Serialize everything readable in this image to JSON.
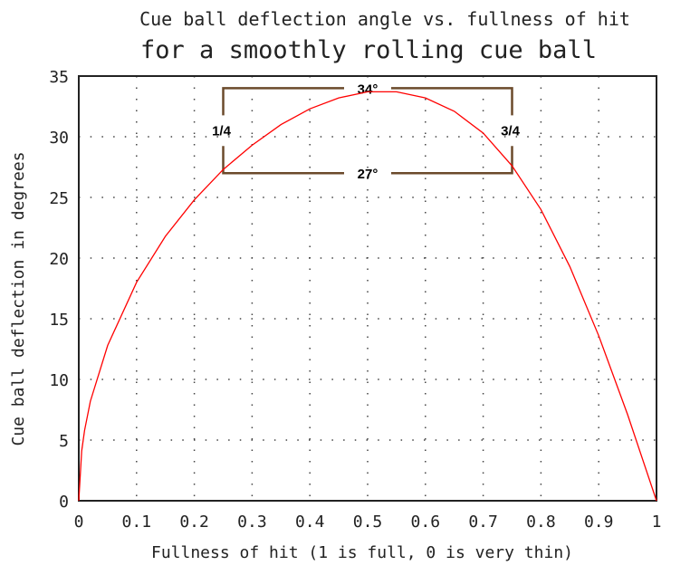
{
  "chart_data": {
    "type": "line",
    "title": "Cue ball deflection angle vs. fullness of hit",
    "subtitle": "for a smoothly rolling cue ball",
    "xlabel": "Fullness of hit (1 is full, 0 is very thin)",
    "ylabel": "Cue ball deflection in degrees",
    "xlim": [
      0,
      1
    ],
    "ylim": [
      0,
      35
    ],
    "xticks": [
      "0",
      "0.1",
      "0.2",
      "0.3",
      "0.4",
      "0.5",
      "0.6",
      "0.7",
      "0.8",
      "0.9",
      "1"
    ],
    "yticks": [
      "0",
      "5",
      "10",
      "15",
      "20",
      "25",
      "30",
      "35"
    ],
    "grid": "dotted",
    "series": [
      {
        "color": "#ff0000",
        "x": [
          0,
          0.005,
          0.01,
          0.02,
          0.05,
          0.1,
          0.15,
          0.2,
          0.25,
          0.3,
          0.35,
          0.4,
          0.45,
          0.5,
          0.55,
          0.6,
          0.65,
          0.7,
          0.75,
          0.8,
          0.85,
          0.9,
          0.95,
          1
        ],
        "y": [
          0,
          4.1,
          5.8,
          8.2,
          12.8,
          18.0,
          21.8,
          24.8,
          27.3,
          29.3,
          31.0,
          32.3,
          33.2,
          33.7,
          33.7,
          33.2,
          32.1,
          30.3,
          27.6,
          24.0,
          19.3,
          13.6,
          7.1,
          0
        ]
      }
    ],
    "annotations": {
      "color": "#6b4a2b",
      "box": {
        "x": [
          0.25,
          0.75
        ],
        "y": [
          27,
          34
        ]
      },
      "top_label": "34°",
      "bottom_label": "27°",
      "left_label": "1/4",
      "right_label": "3/4"
    }
  }
}
